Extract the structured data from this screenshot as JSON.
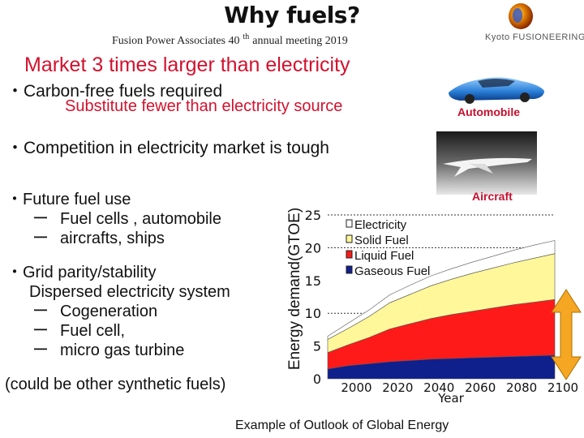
{
  "header": {
    "title": "Why fuels?",
    "meeting_prefix": "Fusion Power Associates 40",
    "meeting_sup": "th",
    "meeting_suffix": "annual meeting 2019",
    "logo_text": "Kyoto FUSIONEERING",
    "logo_icon": "fusion-logo-icon"
  },
  "main": {
    "headline": "Market 3 times larger than electricity",
    "bullet_carbon": "・Carbon-free fuels required",
    "sub_substitute": "Substitute fewer than electricity source",
    "bullet_competition": "・Competition in electricity market is tough",
    "future_title": "・Future fuel use",
    "future_items": [
      "Fuel cells , automobile",
      "aircrafts, ships"
    ],
    "grid_title": "・Grid parity/stability",
    "grid_sub": "Dispersed electricity system",
    "grid_items": [
      "Cogeneration",
      "Fuel cell,",
      "micro gas turbine"
    ],
    "dash": "ー",
    "synthetic_note": "(could be other synthetic fuels)",
    "label_automobile": "Automobile",
    "label_aircraft": "Aircraft",
    "caption": "Example of Outlook of Global Energy"
  },
  "colors": {
    "headline": "#d2122e",
    "electricity": "#ffffff",
    "solid": "#fff799",
    "liquid": "#ff1a1a",
    "gaseous": "#0f1f8c",
    "arrow": "#f5a623"
  },
  "chart_data": {
    "type": "area",
    "xlabel": "Year",
    "ylabel": "Energy demand(GTOE)",
    "ylim": [
      0,
      25
    ],
    "xlim": [
      1990,
      2100
    ],
    "x_ticks": [
      "2000",
      "2020",
      "2040",
      "2060",
      "2080",
      "2100"
    ],
    "y_ticks": [
      "0",
      "5",
      "10",
      "15",
      "20",
      "25"
    ],
    "stacked": true,
    "legend_position": "top-left",
    "x": [
      1990,
      2000,
      2010,
      2020,
      2030,
      2040,
      2050,
      2060,
      2070,
      2080,
      2090,
      2100
    ],
    "series": [
      {
        "name": "Gaseous Fuel",
        "values": [
          1.5,
          2.0,
          2.3,
          2.6,
          2.8,
          3.0,
          3.1,
          3.2,
          3.3,
          3.4,
          3.5,
          3.6
        ]
      },
      {
        "name": "Liquid Fuel",
        "values": [
          2.5,
          3.2,
          4.0,
          5.0,
          5.6,
          6.2,
          6.7,
          7.1,
          7.5,
          7.9,
          8.2,
          8.5
        ]
      },
      {
        "name": "Solid Fuel",
        "values": [
          2.0,
          2.5,
          3.2,
          4.0,
          4.5,
          5.0,
          5.4,
          5.8,
          6.1,
          6.4,
          6.7,
          7.0
        ]
      },
      {
        "name": "Electricity",
        "values": [
          0.5,
          0.8,
          1.0,
          1.2,
          1.4,
          1.5,
          1.6,
          1.7,
          1.8,
          1.9,
          2.0,
          2.0
        ]
      }
    ]
  }
}
